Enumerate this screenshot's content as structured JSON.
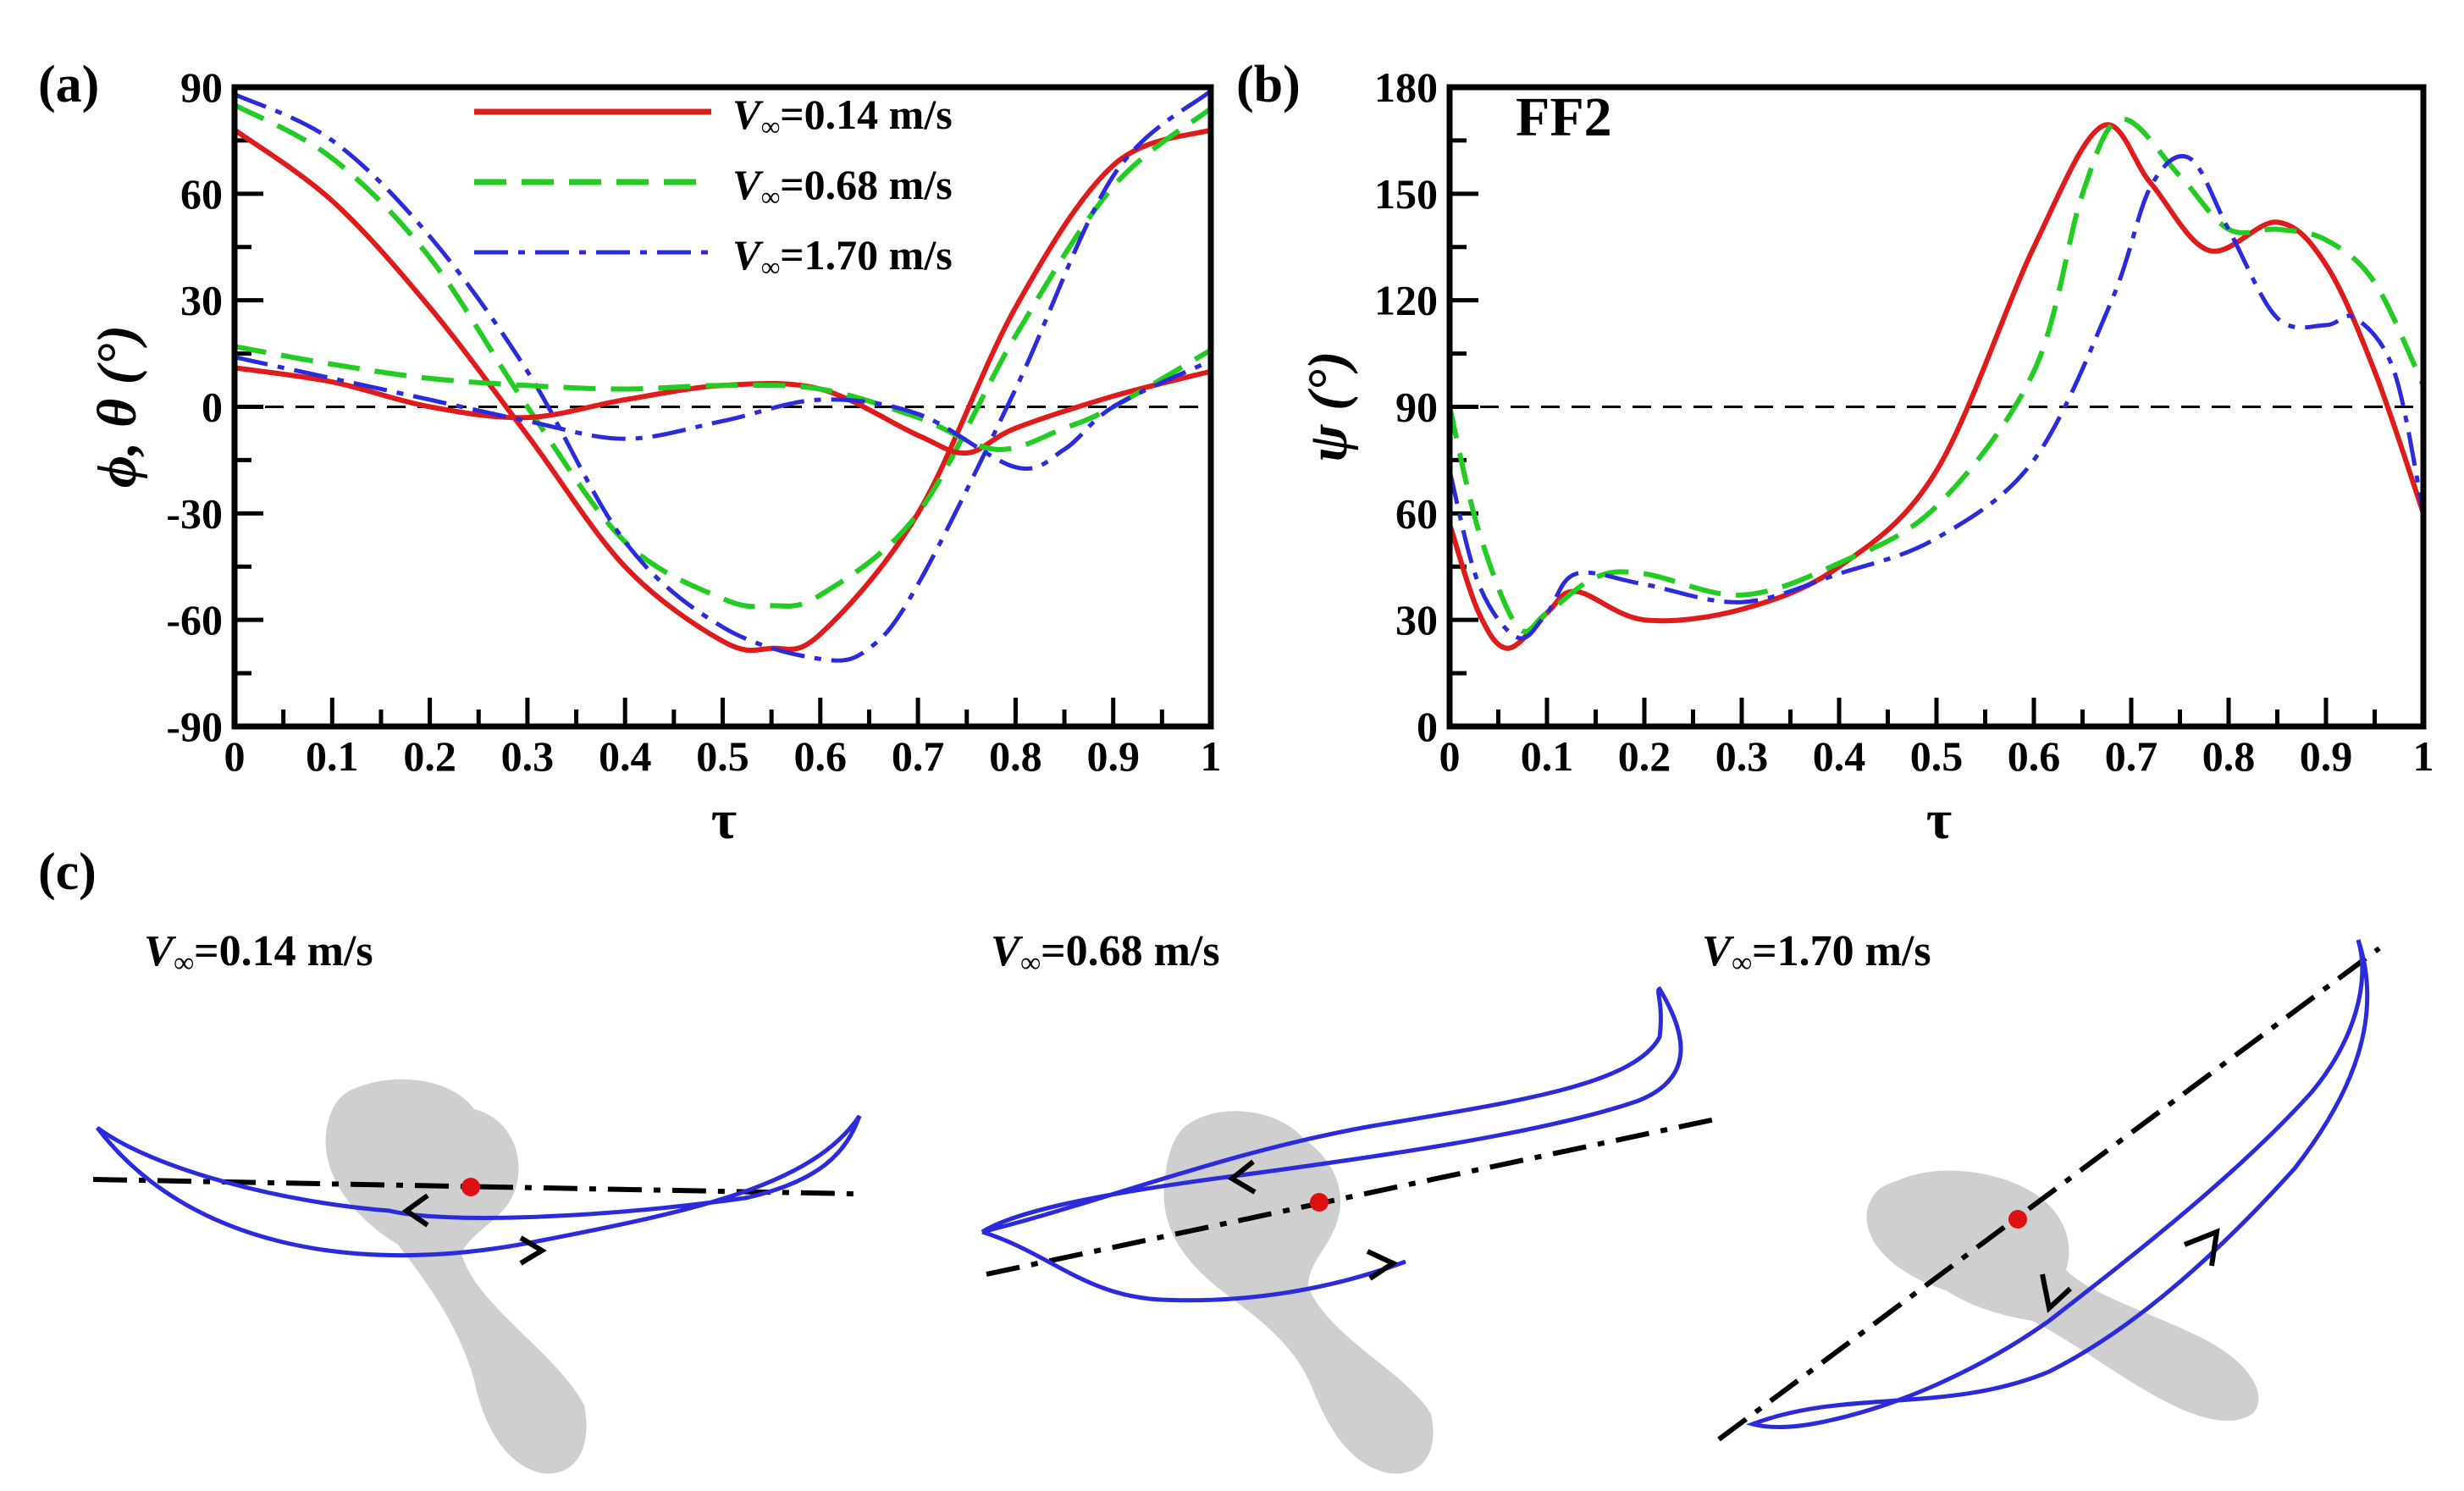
{
  "figure": {
    "colors": {
      "red": "#e01b1b",
      "green": "#22cc22",
      "blue": "#2b2bdd",
      "blob": "#cfcfcf",
      "dot": "#dd1111"
    }
  },
  "chart_data": [
    {
      "panel": "a",
      "label": "(a)",
      "type": "line",
      "title": "",
      "xlabel": "τ",
      "ylabel": "ϕ, θ (°)",
      "xlim": [
        0,
        1
      ],
      "ylim": [
        -90,
        90
      ],
      "xticks": [
        "0",
        "0.1",
        "0.2",
        "0.3",
        "0.4",
        "0.5",
        "0.6",
        "0.7",
        "0.8",
        "0.9",
        "1"
      ],
      "yticks": [
        "-90",
        "-60",
        "-30",
        "0",
        "30",
        "60",
        "90"
      ],
      "reference_line": 0,
      "legend": {
        "entries": [
          {
            "prefix": "V",
            "sub": "∞",
            "text": "=0.14 m/s",
            "color": "#e01b1b",
            "dash": "solid"
          },
          {
            "prefix": "V",
            "sub": "∞",
            "text": "=0.68 m/s",
            "color": "#22cc22",
            "dash": "dashed"
          },
          {
            "prefix": "V",
            "sub": "∞",
            "text": "=1.70 m/s",
            "color": "#2b2bdd",
            "dash": "dashdot"
          }
        ]
      },
      "series": [
        {
          "name": "phi V∞=0.14 m/s",
          "color": "#e01b1b",
          "dash": "solid",
          "x": [
            0,
            0.1,
            0.2,
            0.3,
            0.4,
            0.5,
            0.55,
            0.6,
            0.7,
            0.8,
            0.9,
            1
          ],
          "y": [
            78,
            58,
            28,
            -8,
            -45,
            -66,
            -68,
            -64,
            -30,
            28,
            68,
            78
          ]
        },
        {
          "name": "phi V∞=0.68 m/s",
          "color": "#22cc22",
          "dash": "dashed",
          "x": [
            0,
            0.1,
            0.2,
            0.3,
            0.4,
            0.5,
            0.55,
            0.6,
            0.7,
            0.8,
            0.9,
            1
          ],
          "y": [
            85,
            70,
            42,
            0,
            -38,
            -54,
            -56,
            -53,
            -30,
            20,
            62,
            84
          ]
        },
        {
          "name": "phi V∞=1.70 m/s",
          "color": "#2b2bdd",
          "dash": "dashdot",
          "x": [
            0,
            0.1,
            0.2,
            0.3,
            0.4,
            0.5,
            0.6,
            0.65,
            0.7,
            0.8,
            0.9,
            1
          ],
          "y": [
            88,
            75,
            48,
            10,
            -38,
            -62,
            -71,
            -68,
            -50,
            5,
            65,
            89
          ]
        },
        {
          "name": "theta V∞=0.14 m/s",
          "color": "#e01b1b",
          "dash": "solid",
          "x": [
            0,
            0.1,
            0.2,
            0.3,
            0.4,
            0.5,
            0.6,
            0.7,
            0.75,
            0.8,
            0.9,
            1
          ],
          "y": [
            11,
            7,
            0,
            -3,
            2,
            6,
            5,
            -8,
            -13,
            -6,
            3,
            10
          ]
        },
        {
          "name": "theta V∞=0.68 m/s",
          "color": "#22cc22",
          "dash": "dashed",
          "x": [
            0,
            0.1,
            0.2,
            0.3,
            0.4,
            0.5,
            0.6,
            0.7,
            0.78,
            0.85,
            0.9,
            1
          ],
          "y": [
            17,
            12,
            8,
            6,
            5,
            6,
            5,
            -3,
            -12,
            -6,
            0,
            16
          ]
        },
        {
          "name": "theta V∞=1.70 m/s",
          "color": "#2b2bdd",
          "dash": "dashdot",
          "x": [
            0,
            0.1,
            0.2,
            0.3,
            0.4,
            0.5,
            0.6,
            0.7,
            0.8,
            0.85,
            0.9,
            1
          ],
          "y": [
            14,
            8,
            2,
            -4,
            -9,
            -4,
            2,
            -2,
            -17,
            -12,
            0,
            13
          ]
        }
      ]
    },
    {
      "panel": "b",
      "label": "(b)",
      "type": "line",
      "title": "FF2",
      "xlabel": "τ",
      "ylabel": "ψ (°)",
      "xlim": [
        0,
        1
      ],
      "ylim": [
        0,
        180
      ],
      "xticks": [
        "0",
        "0.1",
        "0.2",
        "0.3",
        "0.4",
        "0.5",
        "0.6",
        "0.7",
        "0.8",
        "0.9",
        "1"
      ],
      "yticks": [
        "0",
        "30",
        "60",
        "90",
        "120",
        "150",
        "180"
      ],
      "reference_line": 90,
      "series": [
        {
          "name": "psi V∞=0.14 m/s",
          "color": "#e01b1b",
          "dash": "solid",
          "x": [
            0,
            0.03,
            0.06,
            0.1,
            0.13,
            0.2,
            0.3,
            0.4,
            0.5,
            0.6,
            0.67,
            0.72,
            0.78,
            0.85,
            0.9,
            0.95,
            1
          ],
          "y": [
            57,
            32,
            22,
            32,
            38,
            30,
            33,
            45,
            72,
            135,
            169,
            153,
            134,
            142,
            130,
            100,
            60
          ]
        },
        {
          "name": "psi V∞=0.68 m/s",
          "color": "#22cc22",
          "dash": "dashed",
          "x": [
            0,
            0.03,
            0.07,
            0.1,
            0.15,
            0.2,
            0.3,
            0.4,
            0.5,
            0.6,
            0.65,
            0.69,
            0.75,
            0.8,
            0.85,
            0.9,
            0.95,
            1
          ],
          "y": [
            90,
            55,
            28,
            32,
            42,
            43,
            37,
            46,
            62,
            100,
            150,
            171,
            155,
            140,
            140,
            137,
            125,
            96
          ]
        },
        {
          "name": "psi V∞=1.70 m/s",
          "color": "#2b2bdd",
          "dash": "dashdot",
          "x": [
            0,
            0.03,
            0.07,
            0.1,
            0.13,
            0.2,
            0.3,
            0.4,
            0.5,
            0.6,
            0.68,
            0.72,
            0.76,
            0.8,
            0.85,
            0.9,
            0.93,
            0.97,
            1
          ],
          "y": [
            72,
            40,
            25,
            32,
            43,
            40,
            35,
            43,
            53,
            75,
            120,
            152,
            160,
            140,
            115,
            113,
            115,
            100,
            60
          ]
        }
      ]
    }
  ],
  "panel_c": {
    "label": "(c)",
    "subpanels": [
      {
        "prefix": "V",
        "sub": "∞",
        "text": "=0.14 m/s"
      },
      {
        "prefix": "V",
        "sub": "∞",
        "text": "=0.68 m/s"
      },
      {
        "prefix": "V",
        "sub": "∞",
        "text": "=1.70 m/s"
      }
    ]
  }
}
